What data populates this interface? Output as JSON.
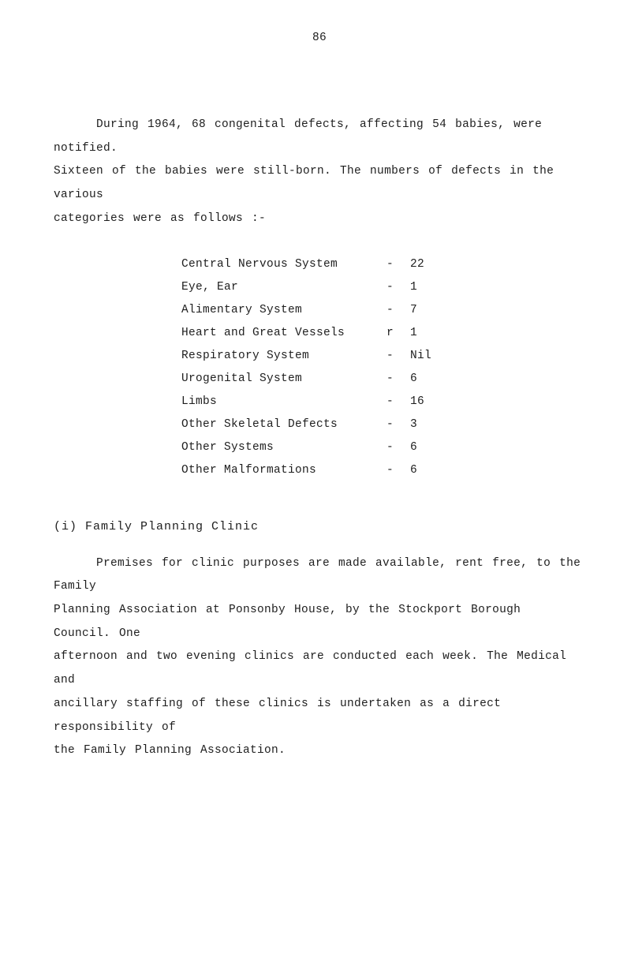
{
  "pageNumber": "86",
  "intro": {
    "line1": "During 1964, 68 congenital defects, affecting 54 babies, were notified.",
    "line2": "Sixteen of the babies were still-born.  The numbers of defects in the various",
    "line3": "categories  were as follows :-"
  },
  "table": [
    {
      "label": "Central Nervous System",
      "sep": "-",
      "value": "22"
    },
    {
      "label": "Eye, Ear",
      "sep": "-",
      "value": "1"
    },
    {
      "label": "Alimentary System",
      "sep": "-",
      "value": "7"
    },
    {
      "label": "Heart and Great Vessels",
      "sep": "r",
      "value": "1"
    },
    {
      "label": "Respiratory System",
      "sep": "-",
      "value": "Nil"
    },
    {
      "label": "Urogenital System",
      "sep": "-",
      "value": "6"
    },
    {
      "label": "Limbs",
      "sep": "-",
      "value": "16"
    },
    {
      "label": "Other Skeletal Defects",
      "sep": "-",
      "value": "3"
    },
    {
      "label": "Other Systems",
      "sep": "-",
      "value": "6"
    },
    {
      "label": "Other Malformations",
      "sep": "-",
      "value": "6"
    }
  ],
  "sectionHead": "(i) Family Planning Clinic",
  "body": {
    "line1": "Premises for clinic purposes are made available, rent free, to the Family",
    "line2": "Planning Association at Ponsonby House, by the Stockport Borough Council.   One",
    "line3": "afternoon and two evening clinics are conducted each week.   The Medical and",
    "line4": "ancillary staffing of these clinics is undertaken as a direct responsibility of",
    "line5": "the Family Planning Association."
  }
}
